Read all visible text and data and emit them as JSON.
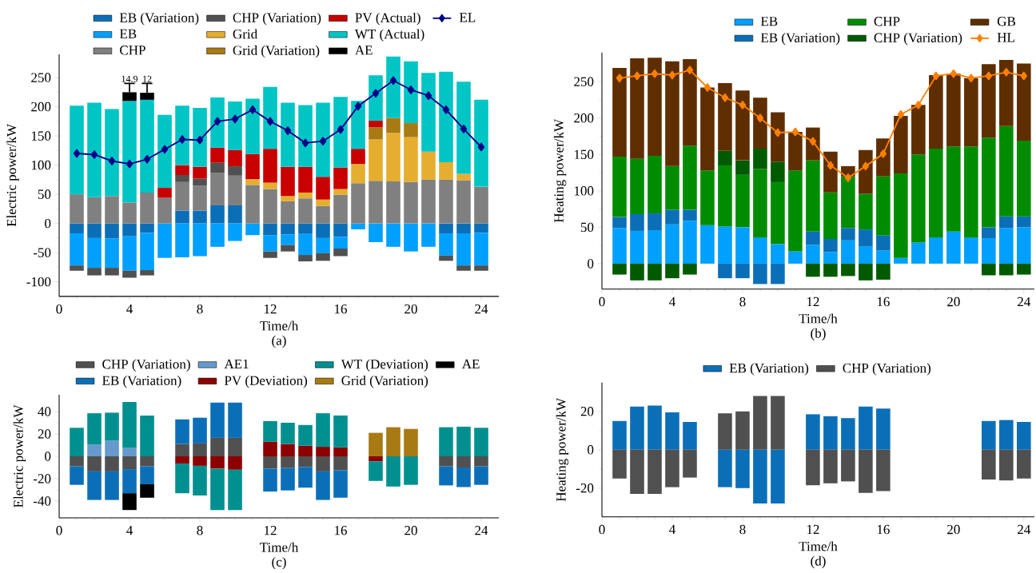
{
  "chart_data": [
    {
      "type": "bar",
      "stacked": true,
      "xlabel": "Time/h",
      "ylabel": "Electric power/kW",
      "annotations": [
        "(a)"
      ],
      "legend": "top left",
      "x": [
        1,
        2,
        3,
        4,
        5,
        6,
        7,
        8,
        9,
        10,
        11,
        12,
        13,
        14,
        15,
        16,
        17,
        18,
        19,
        20,
        21,
        22,
        23,
        24
      ],
      "xlim": [
        0,
        25
      ],
      "ylim": [
        -125,
        290
      ],
      "xticks": [
        0,
        4,
        8,
        12,
        16,
        20,
        24
      ],
      "yticks": [
        -100,
        -50,
        0,
        50,
        100,
        150,
        200,
        250
      ],
      "series": [
        {
          "name": "EB (Variation)",
          "color": "#0b6fb8",
          "values": [
            -17,
            -25,
            -26,
            -22,
            -16,
            null,
            22,
            22,
            31,
            31,
            null,
            -20,
            -19,
            -18,
            -25,
            -23,
            null,
            null,
            null,
            null,
            null,
            -17,
            -17,
            -16
          ]
        },
        {
          "name": "EB",
          "color": "#00a0ff",
          "values": [
            -55,
            -51,
            -50,
            -59,
            -64,
            -59,
            -58,
            -56,
            -40,
            -30,
            -20,
            -28,
            -18,
            -36,
            -26,
            -20,
            -10,
            -32,
            -40,
            -48,
            -40,
            -38,
            -55,
            -56
          ]
        },
        {
          "name": "CHP",
          "color": "#808080",
          "values": [
            50,
            45,
            47,
            36,
            53,
            44,
            49,
            43,
            56,
            51,
            66,
            59,
            38,
            43,
            30,
            49,
            69,
            73,
            72,
            71,
            75,
            75,
            74,
            63
          ]
        },
        {
          "name": "CHP (Variation)",
          "color": "#505050",
          "values": [
            -9,
            -13,
            -13,
            -12,
            -9,
            null,
            12,
            12,
            17,
            16,
            null,
            -11,
            -11,
            -11,
            -13,
            -13,
            null,
            null,
            null,
            null,
            null,
            -9,
            -9,
            -9
          ]
        },
        {
          "name": "Grid",
          "color": "#e5ae2f",
          "values": [
            null,
            null,
            null,
            null,
            null,
            null,
            null,
            null,
            null,
            null,
            10,
            11,
            9,
            10,
            11,
            10,
            33,
            71,
            83,
            77,
            48,
            30,
            11,
            null
          ]
        },
        {
          "name": "Grid (Variation)",
          "color": "#a87a14",
          "values": [
            null,
            null,
            null,
            null,
            null,
            null,
            null,
            null,
            null,
            null,
            null,
            null,
            null,
            null,
            null,
            null,
            null,
            21,
            26,
            24,
            null,
            null,
            null,
            null
          ]
        },
        {
          "name": "PV (Actual)",
          "color": "#c80000",
          "values": [
            null,
            null,
            null,
            null,
            null,
            17,
            17,
            20,
            26,
            28,
            43,
            58,
            50,
            44,
            39,
            37,
            26,
            11,
            null,
            null,
            null,
            null,
            null,
            null
          ]
        },
        {
          "name": "WT (Actual)",
          "color": "#00c5c5",
          "values": [
            152,
            162,
            149,
            174,
            159,
            125,
            102,
            101,
            86,
            83,
            95,
            106,
            110,
            106,
            127,
            121,
            82,
            78,
            105,
            106,
            135,
            155,
            158,
            149
          ]
        },
        {
          "name": "AE",
          "color": "#000000",
          "values": [
            null,
            null,
            null,
            14.9,
            12,
            null,
            null,
            null,
            null,
            null,
            null,
            null,
            null,
            null,
            null,
            null,
            null,
            null,
            null,
            null,
            null,
            null,
            null,
            null
          ],
          "errors": [
            null,
            null,
            null,
            [
              225,
              240
            ],
            [
              224,
              240
            ],
            null,
            null,
            null,
            null,
            null,
            null,
            null,
            null,
            null,
            null,
            null,
            null,
            null,
            null,
            null,
            null,
            null,
            null,
            null
          ],
          "value_labels": [
            null,
            null,
            null,
            "14.9",
            "12",
            null,
            null,
            null,
            null,
            null,
            null,
            null,
            null,
            null,
            null,
            null,
            null,
            null,
            null,
            null,
            null,
            null,
            null,
            null
          ]
        },
        {
          "name": "EL",
          "type": "line",
          "marker": "diamond",
          "color": "#00008b",
          "values": [
            120,
            118,
            107,
            102,
            110,
            127,
            144,
            143,
            175,
            179,
            195,
            175,
            159,
            138,
            141,
            161,
            201,
            223,
            245,
            229,
            219,
            195,
            162,
            131
          ]
        }
      ]
    },
    {
      "type": "bar",
      "stacked": true,
      "xlabel": "Time/h",
      "ylabel": "Heating power/kW",
      "annotations": [
        "(b)"
      ],
      "legend": "top right",
      "x": [
        1,
        2,
        3,
        4,
        5,
        6,
        7,
        8,
        9,
        10,
        11,
        12,
        13,
        14,
        15,
        16,
        17,
        18,
        19,
        20,
        21,
        22,
        23,
        24
      ],
      "xlim": [
        0,
        24.6
      ],
      "ylim": [
        -35,
        290
      ],
      "xticks": [
        0,
        4,
        8,
        12,
        16,
        20,
        24
      ],
      "yticks": [
        0,
        50,
        100,
        150,
        200,
        250
      ],
      "series": [
        {
          "name": "EB",
          "color": "#00a0ff",
          "values": [
            49,
            45,
            46,
            54,
            59,
            53,
            51,
            50,
            36,
            27,
            17,
            26,
            16,
            32,
            24,
            18,
            8,
            29,
            36,
            44,
            36,
            35,
            49,
            50
          ]
        },
        {
          "name": "EB (Variation)",
          "color": "#0b6fb8",
          "values": [
            15,
            23,
            23,
            20,
            15,
            null,
            -20,
            -20,
            -28,
            -28,
            null,
            18,
            18,
            17,
            23,
            21,
            null,
            null,
            null,
            null,
            null,
            15,
            16,
            15
          ]
        },
        {
          "name": "CHP",
          "color": "#008c00",
          "values": [
            83,
            76,
            79,
            60,
            88,
            75,
            84,
            72,
            94,
            85,
            111,
            98,
            64,
            71,
            49,
            81,
            116,
            121,
            122,
            117,
            125,
            123,
            124,
            104
          ]
        },
        {
          "name": "CHP (Variation)",
          "color": "#005a00",
          "values": [
            -15,
            -23,
            -23,
            -20,
            -15,
            null,
            20,
            20,
            28,
            28,
            null,
            -18,
            -18,
            -17,
            -23,
            -22,
            null,
            null,
            null,
            null,
            null,
            -16,
            -16,
            -15
          ]
        },
        {
          "name": "GB",
          "color": "#5e2e00",
          "values": [
            122,
            138,
            135,
            144,
            119,
            114,
            93,
            96,
            70,
            68,
            53,
            45,
            56,
            14,
            60,
            52,
            79,
            68,
            101,
            100,
            94,
            101,
            91,
            106
          ]
        },
        {
          "name": "HL",
          "type": "line",
          "marker": "diamond",
          "color": "#ff8000",
          "values": [
            255,
            258,
            261,
            259,
            266,
            242,
            228,
            218,
            200,
            180,
            181,
            168,
            135,
            118,
            134,
            151,
            205,
            218,
            258,
            261,
            255,
            258,
            263,
            258
          ]
        }
      ]
    },
    {
      "type": "bar",
      "stacked": true,
      "xlabel": "Time/h",
      "ylabel": "Electric power/kW",
      "annotations": [
        "(c)"
      ],
      "legend": "top",
      "x": [
        1,
        2,
        3,
        4,
        5,
        6,
        7,
        8,
        9,
        10,
        11,
        12,
        13,
        14,
        15,
        16,
        17,
        18,
        19,
        20,
        21,
        22,
        23,
        24
      ],
      "xlim": [
        0,
        25
      ],
      "ylim": [
        -55,
        55
      ],
      "xticks": [
        0,
        4,
        8,
        12,
        16,
        20,
        24
      ],
      "yticks": [
        -40,
        -20,
        0,
        20,
        40
      ],
      "series": [
        {
          "name": "CHP (Variation)",
          "color": "#505050",
          "values": [
            -9,
            -13.5,
            -13.5,
            -11.5,
            -9,
            null,
            11,
            11.5,
            16.5,
            16.5,
            null,
            -11,
            -10.5,
            -9.5,
            -13.5,
            -12.5,
            null,
            null,
            null,
            null,
            null,
            -9,
            -10,
            -9
          ]
        },
        {
          "name": "EB (Variation)",
          "color": "#0b6fb8",
          "values": [
            -16.5,
            -25.5,
            -25.5,
            -21.5,
            -16,
            null,
            22,
            23,
            31.5,
            31.5,
            null,
            -20.5,
            -20,
            -18.5,
            -25.5,
            -24.5,
            null,
            null,
            null,
            null,
            null,
            -17,
            -17.5,
            -16.5
          ]
        },
        {
          "name": "AE1",
          "color": "#6699cc",
          "values": [
            null,
            10.5,
            14,
            7.5,
            null,
            null,
            null,
            null,
            null,
            null,
            null,
            null,
            null,
            null,
            null,
            null,
            null,
            null,
            null,
            null,
            null,
            null,
            null,
            null
          ]
        },
        {
          "name": "PV (Deviation)",
          "color": "#8c0000",
          "values": [
            null,
            null,
            null,
            null,
            null,
            null,
            -6.5,
            -8.5,
            -11,
            -12,
            null,
            13,
            11,
            9.5,
            8.5,
            8,
            null,
            -4.5,
            null,
            null,
            null,
            null,
            null,
            null
          ]
        },
        {
          "name": "WT (Deviation)",
          "color": "#008f8f",
          "values": [
            25.5,
            28,
            25,
            41,
            36.5,
            null,
            -26.5,
            -26.5,
            -37,
            -36,
            null,
            18.5,
            19,
            18.5,
            30,
            28.5,
            null,
            -17.5,
            -27,
            -25.5,
            null,
            26,
            26.5,
            25.5
          ]
        },
        {
          "name": "Grid (Variation)",
          "color": "#a87a14",
          "values": [
            null,
            null,
            null,
            null,
            null,
            null,
            null,
            null,
            null,
            null,
            null,
            null,
            null,
            null,
            null,
            null,
            null,
            21,
            26,
            24.5,
            null,
            null,
            null,
            null
          ]
        },
        {
          "name": "AE",
          "color": "#000000",
          "values": [
            null,
            null,
            null,
            -15,
            -12,
            null,
            null,
            null,
            null,
            null,
            null,
            null,
            null,
            null,
            null,
            null,
            null,
            null,
            null,
            null,
            null,
            null,
            null,
            null
          ]
        }
      ]
    },
    {
      "type": "bar",
      "stacked": true,
      "xlabel": "Time/h",
      "ylabel": "Heating power/kW",
      "annotations": [
        "(d)"
      ],
      "legend": "top",
      "x": [
        1,
        2,
        3,
        4,
        5,
        6,
        7,
        8,
        9,
        10,
        11,
        12,
        13,
        14,
        15,
        16,
        17,
        18,
        19,
        20,
        21,
        22,
        23,
        24
      ],
      "xlim": [
        0,
        24.6
      ],
      "ylim": [
        -35,
        35
      ],
      "xticks": [
        0,
        4,
        8,
        12,
        16,
        20,
        24
      ],
      "yticks": [
        -20,
        0,
        20
      ],
      "series": [
        {
          "name": "EB (Variation)",
          "color": "#0b6fb8",
          "values": [
            15,
            22.5,
            23,
            19.5,
            14.5,
            null,
            -19.5,
            -20,
            -28,
            -28,
            null,
            18.5,
            17.5,
            16.5,
            22.5,
            21.5,
            null,
            null,
            null,
            null,
            null,
            15,
            15.5,
            14.5
          ]
        },
        {
          "name": "CHP (Variation)",
          "color": "#505050",
          "values": [
            -15,
            -23,
            -23,
            -19.5,
            -14.5,
            null,
            19,
            20,
            28,
            28,
            null,
            -18.5,
            -17.5,
            -16.5,
            -22.5,
            -21.5,
            null,
            null,
            null,
            null,
            null,
            -15.5,
            -16,
            -15
          ]
        }
      ]
    }
  ]
}
